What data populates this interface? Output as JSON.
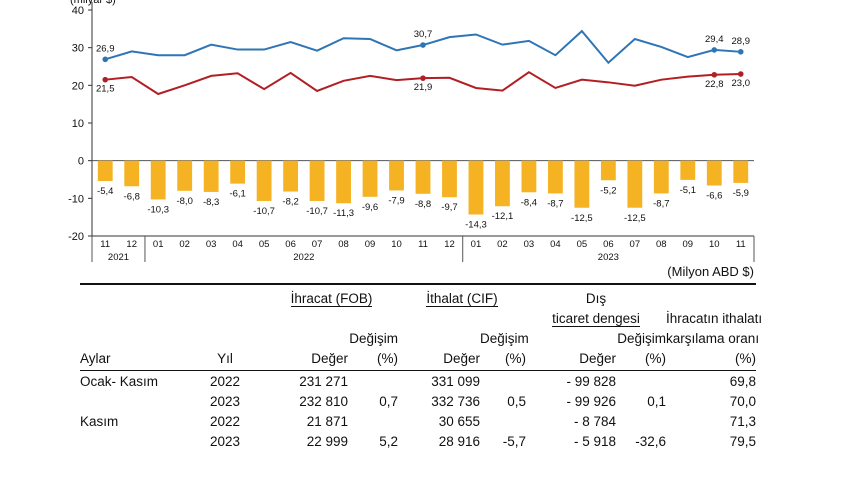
{
  "chart_data": {
    "type": "bar+line",
    "unit_label": "(Milyon ABD $)",
    "top_axis_label": "(milyar $)",
    "ylim": [
      -20,
      40
    ],
    "yticks": [
      -20,
      -10,
      0,
      10,
      20,
      30,
      40
    ],
    "x": [
      "11",
      "12",
      "01",
      "02",
      "03",
      "04",
      "05",
      "06",
      "07",
      "08",
      "09",
      "10",
      "11",
      "12",
      "01",
      "02",
      "03",
      "04",
      "05",
      "06",
      "07",
      "08",
      "09",
      "10",
      "11"
    ],
    "year_groups": [
      {
        "label": "2021",
        "start": 0,
        "end": 1
      },
      {
        "label": "2022",
        "start": 2,
        "end": 13
      },
      {
        "label": "2023",
        "start": 14,
        "end": 24
      }
    ],
    "series": [
      {
        "kind": "line",
        "color": "#2e75b6",
        "values": [
          26.9,
          29.0,
          28.0,
          28.0,
          30.8,
          29.5,
          29.5,
          31.5,
          29.2,
          32.5,
          32.3,
          29.3,
          30.7,
          32.8,
          33.5,
          30.8,
          31.8,
          28.0,
          34.4,
          26.0,
          32.3,
          30.2,
          27.5,
          29.4,
          28.9
        ],
        "labels": {
          "0": "26,9",
          "12": "30,7",
          "23": "29,4",
          "24": "28,9"
        }
      },
      {
        "kind": "line",
        "color": "#b11f24",
        "values": [
          21.5,
          22.2,
          17.7,
          20.0,
          22.5,
          23.2,
          19.0,
          23.3,
          18.5,
          21.2,
          22.5,
          21.4,
          21.9,
          22.0,
          19.3,
          18.6,
          23.5,
          19.3,
          21.5,
          20.8,
          19.9,
          21.5,
          22.3,
          22.8,
          23.0
        ],
        "labels": {
          "0": "21,5",
          "12": "21,9",
          "23": "22,8",
          "24": "23,0"
        }
      },
      {
        "kind": "bar",
        "color": "#f5b324",
        "values": [
          -5.4,
          -6.8,
          -10.3,
          -8.0,
          -8.3,
          -6.1,
          -10.7,
          -8.2,
          -10.7,
          -11.3,
          -9.6,
          -7.9,
          -8.8,
          -9.7,
          -14.3,
          -12.1,
          -8.4,
          -8.7,
          -12.5,
          -5.2,
          -12.5,
          -8.7,
          -5.1,
          -6.6,
          -5.9
        ],
        "labels": [
          "-5,4",
          "-6,8",
          "-10,3",
          "-8,0",
          "-8,3",
          "-6,1",
          "-10,7",
          "-8,2",
          "-10,7",
          "-11,3",
          "-9,6",
          "-7,9",
          "-8,8",
          "-9,7",
          "-14,3",
          "-12,1",
          "-8,4",
          "-8,7",
          "-12,5",
          "-5,2",
          "-12,5",
          "-8,7",
          "-5,1",
          "-6,6",
          "-5,9"
        ]
      }
    ]
  },
  "table": {
    "header1": {
      "ihracat": "İhracat (FOB)",
      "ithalat": "İthalat (CIF)",
      "dis_line1": "Dış"
    },
    "header2": {
      "dis_line2": "ticaret dengesi",
      "oran_line1": "İhracatın ithalatı"
    },
    "header3": {
      "degisim1": "Değişim",
      "degisim2": "Değişim",
      "degisim3": "Değişim",
      "oran_line2": "karşılama oranı"
    },
    "header4": {
      "aylar": "Aylar",
      "yil": "Yıl",
      "deger1": "Değer",
      "pct1": "(%)",
      "deger2": "Değer",
      "pct2": "(%)",
      "deger3": "Değer",
      "pct3": "(%)",
      "pct4": "(%)"
    },
    "rows": [
      {
        "period": "Ocak- Kasım",
        "year": "2022",
        "exp": "231 271",
        "exp_chg": "",
        "imp": "331 099",
        "imp_chg": "",
        "bal": "- 99 828",
        "bal_chg": "",
        "ratio": "69,8"
      },
      {
        "period": "",
        "year": "2023",
        "exp": "232 810",
        "exp_chg": "0,7",
        "imp": "332 736",
        "imp_chg": "0,5",
        "bal": "- 99 926",
        "bal_chg": "0,1",
        "ratio": "70,0"
      },
      {
        "period": "Kasım",
        "year": "2022",
        "exp": "21 871",
        "exp_chg": "",
        "imp": "30 655",
        "imp_chg": "",
        "bal": "- 8 784",
        "bal_chg": "",
        "ratio": "71,3"
      },
      {
        "period": "",
        "year": "2023",
        "exp": "22 999",
        "exp_chg": "5,2",
        "imp": "28 916",
        "imp_chg": "-5,7",
        "bal": "- 5 918",
        "bal_chg": "-32,6",
        "ratio": "79,5"
      }
    ]
  }
}
